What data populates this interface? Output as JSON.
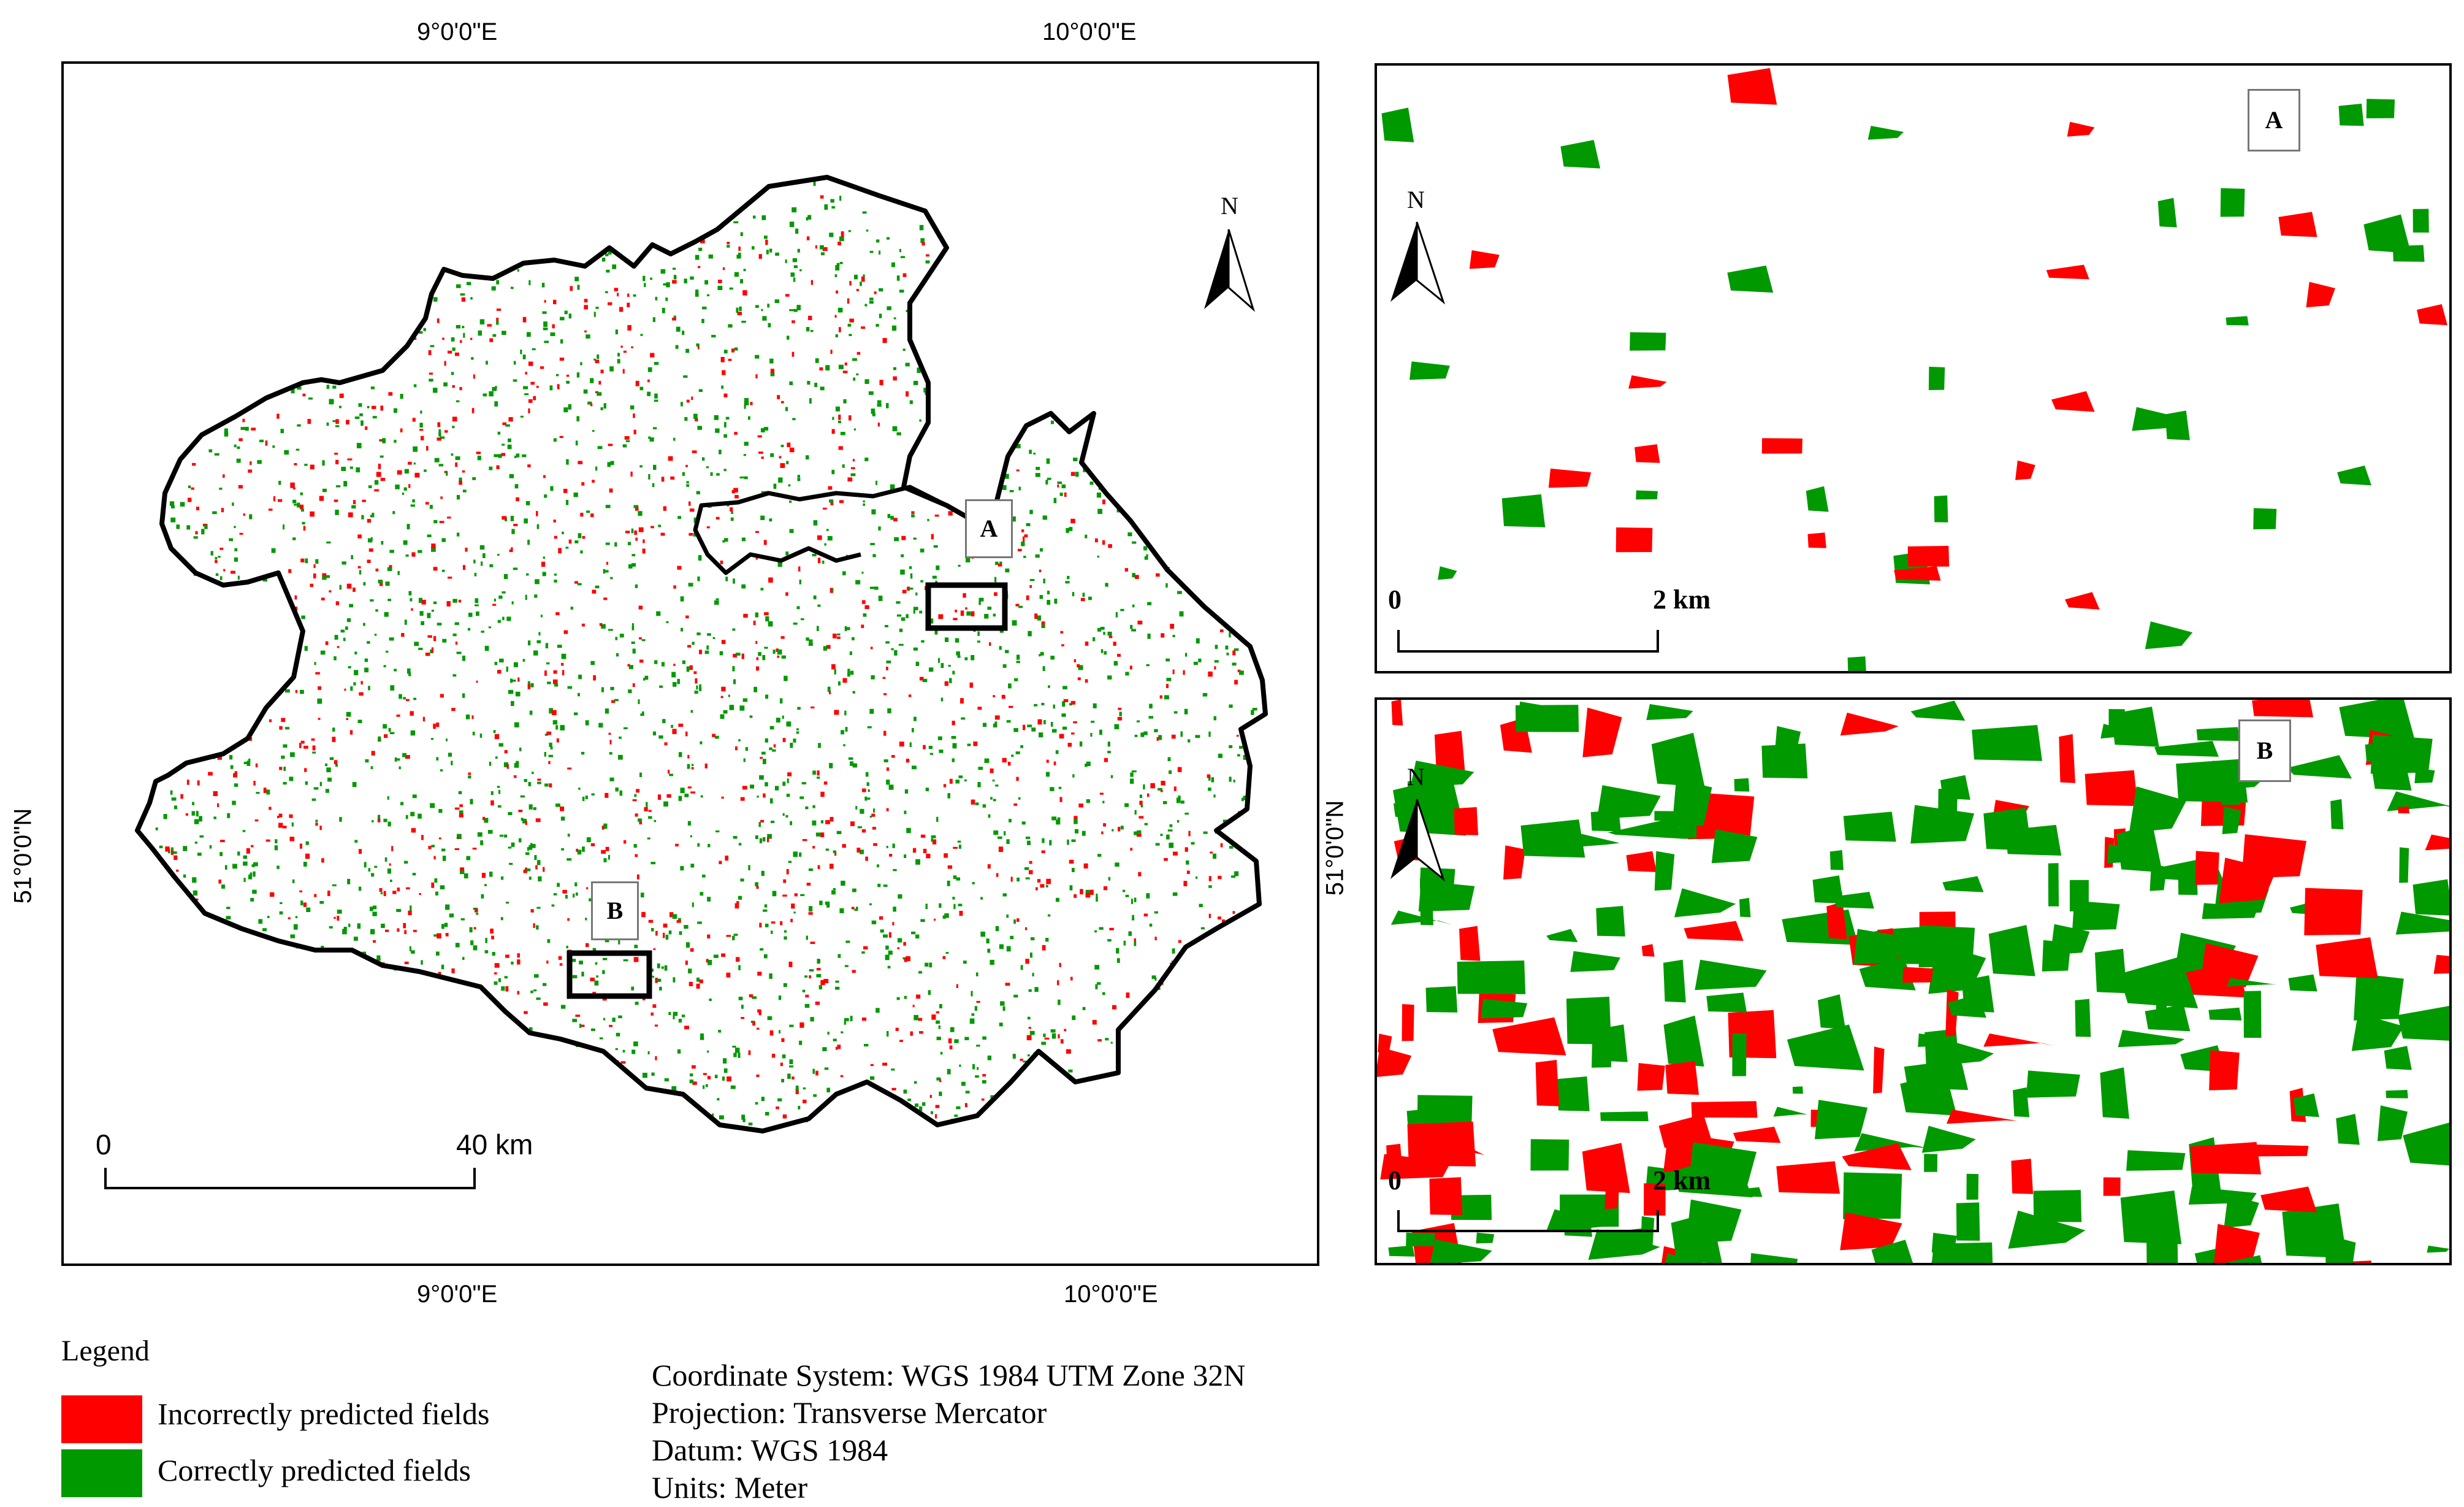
{
  "colors": {
    "incorrect": "#ff0000",
    "correct": "#009900",
    "boundary": "#000000"
  },
  "main_map": {
    "top_lon_labels": [
      "9°0'0\"E",
      "10°0'0\"E"
    ],
    "bottom_lon_labels": [
      "9°0'0\"E",
      "10°0'0\"E"
    ],
    "left_lat_label": "51°0'0\"N",
    "right_lat_label": "51°0'0\"N",
    "north_label": "N",
    "inset_markers": [
      "A",
      "B"
    ],
    "scale": {
      "zero": "0",
      "end": "40 km"
    }
  },
  "inset_a": {
    "label": "A",
    "north_label": "N",
    "scale": {
      "zero": "0",
      "end": "2 km"
    }
  },
  "inset_b": {
    "label": "B",
    "north_label": "N",
    "scale": {
      "zero": "0",
      "end": "2 km"
    }
  },
  "legend": {
    "title": "Legend",
    "items": [
      {
        "label": "Incorrectly predicted fields",
        "color": "#ff0000"
      },
      {
        "label": "Correctly predicted fields",
        "color": "#009900"
      }
    ]
  },
  "info": {
    "coordinate_system": "Coordinate System: WGS 1984 UTM Zone 32N",
    "projection": "Projection: Transverse Mercator",
    "datum": "Datum: WGS 1984",
    "units": "Units: Meter"
  }
}
